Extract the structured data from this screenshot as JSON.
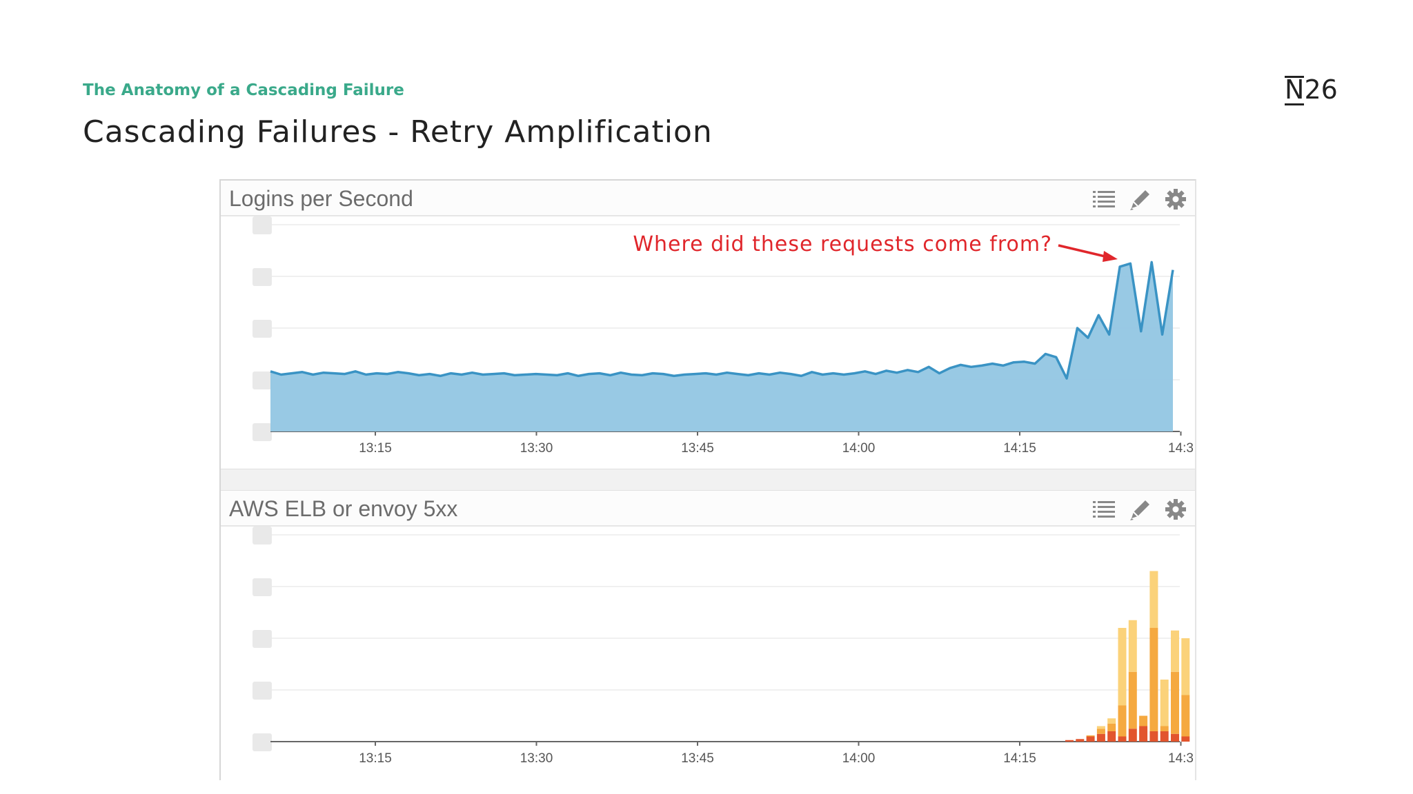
{
  "slide": {
    "kicker": "The Anatomy of a Cascading Failure",
    "title": "Cascading Failures - Retry Amplification",
    "logo": {
      "mark": "N",
      "rest": "26"
    }
  },
  "panel_icons": [
    "list-icon",
    "pencil-icon",
    "gear-icon"
  ],
  "colors": {
    "accent": "#3aa98a",
    "line": "#3a93c4",
    "area": "#92c6e3",
    "annotation": "#e0262b",
    "bar_light": "#fbd27a",
    "bar_mid": "#f5a940",
    "bar_dark": "#e2552d"
  },
  "chart_data": [
    {
      "type": "area",
      "title": "Logins per Second",
      "annotation": "Where did these requests come from?",
      "x_ticks": [
        "13:15",
        "13:30",
        "13:45",
        "14:00",
        "14:15",
        "14:3"
      ],
      "x": [
        "13:05",
        "13:06",
        "13:07",
        "13:08",
        "13:09",
        "13:10",
        "13:11",
        "13:12",
        "13:13",
        "13:14",
        "13:15",
        "13:16",
        "13:17",
        "13:18",
        "13:19",
        "13:20",
        "13:21",
        "13:22",
        "13:23",
        "13:24",
        "13:25",
        "13:26",
        "13:27",
        "13:28",
        "13:29",
        "13:30",
        "13:31",
        "13:32",
        "13:33",
        "13:34",
        "13:35",
        "13:36",
        "13:37",
        "13:38",
        "13:39",
        "13:40",
        "13:41",
        "13:42",
        "13:43",
        "13:44",
        "13:45",
        "13:46",
        "13:47",
        "13:48",
        "13:49",
        "13:50",
        "13:51",
        "13:52",
        "13:53",
        "13:54",
        "13:55",
        "13:56",
        "13:57",
        "13:58",
        "13:59",
        "14:00",
        "14:01",
        "14:02",
        "14:03",
        "14:04",
        "14:05",
        "14:06",
        "14:07",
        "14:08",
        "14:09",
        "14:10",
        "14:11",
        "14:12",
        "14:13",
        "14:14",
        "14:15",
        "14:16",
        "14:17",
        "14:18",
        "14:19",
        "14:20",
        "14:21",
        "14:22",
        "14:23",
        "14:24",
        "14:25",
        "14:26",
        "14:27",
        "14:28",
        "14:29",
        "14:30"
      ],
      "values": [
        0.93,
        0.88,
        0.9,
        0.92,
        0.88,
        0.91,
        0.9,
        0.89,
        0.93,
        0.88,
        0.9,
        0.89,
        0.92,
        0.9,
        0.87,
        0.89,
        0.86,
        0.9,
        0.88,
        0.91,
        0.88,
        0.89,
        0.9,
        0.87,
        0.88,
        0.89,
        0.88,
        0.87,
        0.9,
        0.86,
        0.89,
        0.9,
        0.87,
        0.91,
        0.88,
        0.87,
        0.9,
        0.89,
        0.86,
        0.88,
        0.89,
        0.9,
        0.88,
        0.91,
        0.89,
        0.87,
        0.9,
        0.88,
        0.91,
        0.89,
        0.86,
        0.92,
        0.88,
        0.9,
        0.88,
        0.9,
        0.93,
        0.89,
        0.94,
        0.91,
        0.95,
        0.92,
        1.0,
        0.9,
        0.98,
        1.03,
        1.0,
        1.02,
        1.05,
        1.02,
        1.07,
        1.08,
        1.05,
        1.2,
        1.15,
        0.82,
        1.6,
        1.45,
        1.8,
        1.5,
        2.55,
        2.6,
        1.55,
        2.62,
        1.5,
        2.5
      ],
      "ylim": [
        0,
        3.2
      ],
      "grid": true
    },
    {
      "type": "bar",
      "stacked": true,
      "title": "AWS ELB or envoy 5xx",
      "x_ticks": [
        "13:15",
        "13:30",
        "13:45",
        "14:00",
        "14:15",
        "14:3"
      ],
      "x": [
        "14:19",
        "14:20",
        "14:21",
        "14:22",
        "14:23",
        "14:24",
        "14:25",
        "14:26",
        "14:27",
        "14:28",
        "14:29",
        "14:30"
      ],
      "series": [
        {
          "values": [
            0.03,
            0.05,
            0.1,
            0.15,
            0.2,
            0.1,
            0.25,
            0.3,
            0.2,
            0.2,
            0.15,
            0.1
          ]
        },
        {
          "values": [
            0.0,
            0.0,
            0.02,
            0.1,
            0.15,
            0.6,
            1.1,
            0.2,
            2.0,
            0.1,
            1.2,
            0.8
          ]
        },
        {
          "values": [
            0.0,
            0.0,
            0.0,
            0.05,
            0.1,
            1.5,
            1.0,
            0.0,
            1.1,
            0.9,
            0.8,
            1.1
          ]
        }
      ],
      "ylim": [
        0,
        4
      ],
      "grid": true
    }
  ]
}
